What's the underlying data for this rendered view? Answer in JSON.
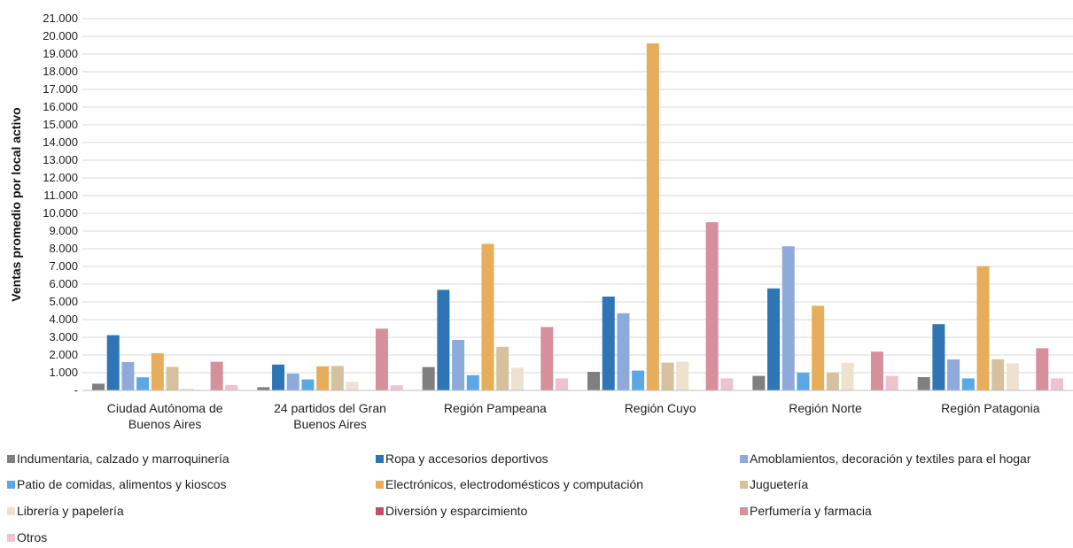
{
  "chart_data": {
    "type": "bar",
    "title": "",
    "xlabel": "",
    "ylabel": "Ventas promedio por local activo",
    "ylim": [
      0,
      21000
    ],
    "yticks": [
      "-",
      "1.000",
      "2.000",
      "3.000",
      "4.000",
      "5.000",
      "6.000",
      "7.000",
      "8.000",
      "9.000",
      "10.000",
      "11.000",
      "12.000",
      "13.000",
      "14.000",
      "15.000",
      "16.000",
      "17.000",
      "18.000",
      "19.000",
      "20.000",
      "21.000"
    ],
    "grid": true,
    "legend_position": "bottom",
    "categories": [
      [
        "Ciudad Autónoma de",
        "Buenos Aires"
      ],
      [
        "24 partidos del Gran",
        "Buenos Aires"
      ],
      [
        "Región Pampeana"
      ],
      [
        "Región Cuyo"
      ],
      [
        "Región Norte"
      ],
      [
        "Región Patagonia"
      ]
    ],
    "series": [
      {
        "name": "Indumentaria, calzado y marroquinería",
        "color": "#7f7f7f",
        "values": [
          380,
          180,
          1320,
          1050,
          820,
          750
        ]
      },
      {
        "name": "Ropa y accesorios deportivos",
        "color": "#2e75b6",
        "values": [
          3120,
          1460,
          5680,
          5300,
          5760,
          3740
        ]
      },
      {
        "name": "Amoblamientos, decoración y textiles para el hogar",
        "color": "#8eaadb",
        "values": [
          1600,
          950,
          2850,
          4360,
          8140,
          1750
        ]
      },
      {
        "name": "Patio de comidas, alimentos y kioscos",
        "color": "#5ba8e5",
        "values": [
          740,
          620,
          860,
          1120,
          1010,
          680
        ]
      },
      {
        "name": "Electrónicos, electrodomésticos y computación",
        "color": "#e8ad5b",
        "values": [
          2100,
          1360,
          8280,
          19600,
          4780,
          7020
        ]
      },
      {
        "name": "Juguetería",
        "color": "#d6c19e",
        "values": [
          1330,
          1380,
          2460,
          1570,
          1010,
          1760
        ]
      },
      {
        "name": "Librería y papelería",
        "color": "#ede1d0",
        "values": [
          100,
          480,
          1280,
          1620,
          1560,
          1530
        ]
      },
      {
        "name": "Diversión y esparcimiento",
        "color": "#c0506a",
        "values": [
          0,
          0,
          0,
          0,
          0,
          0
        ]
      },
      {
        "name": "Perfumería y farmacia",
        "color": "#d6909c",
        "values": [
          1620,
          3490,
          3580,
          9500,
          2190,
          2380
        ]
      },
      {
        "name": "Otros",
        "color": "#ecc3cf",
        "values": [
          300,
          290,
          680,
          680,
          820,
          680
        ]
      }
    ]
  }
}
